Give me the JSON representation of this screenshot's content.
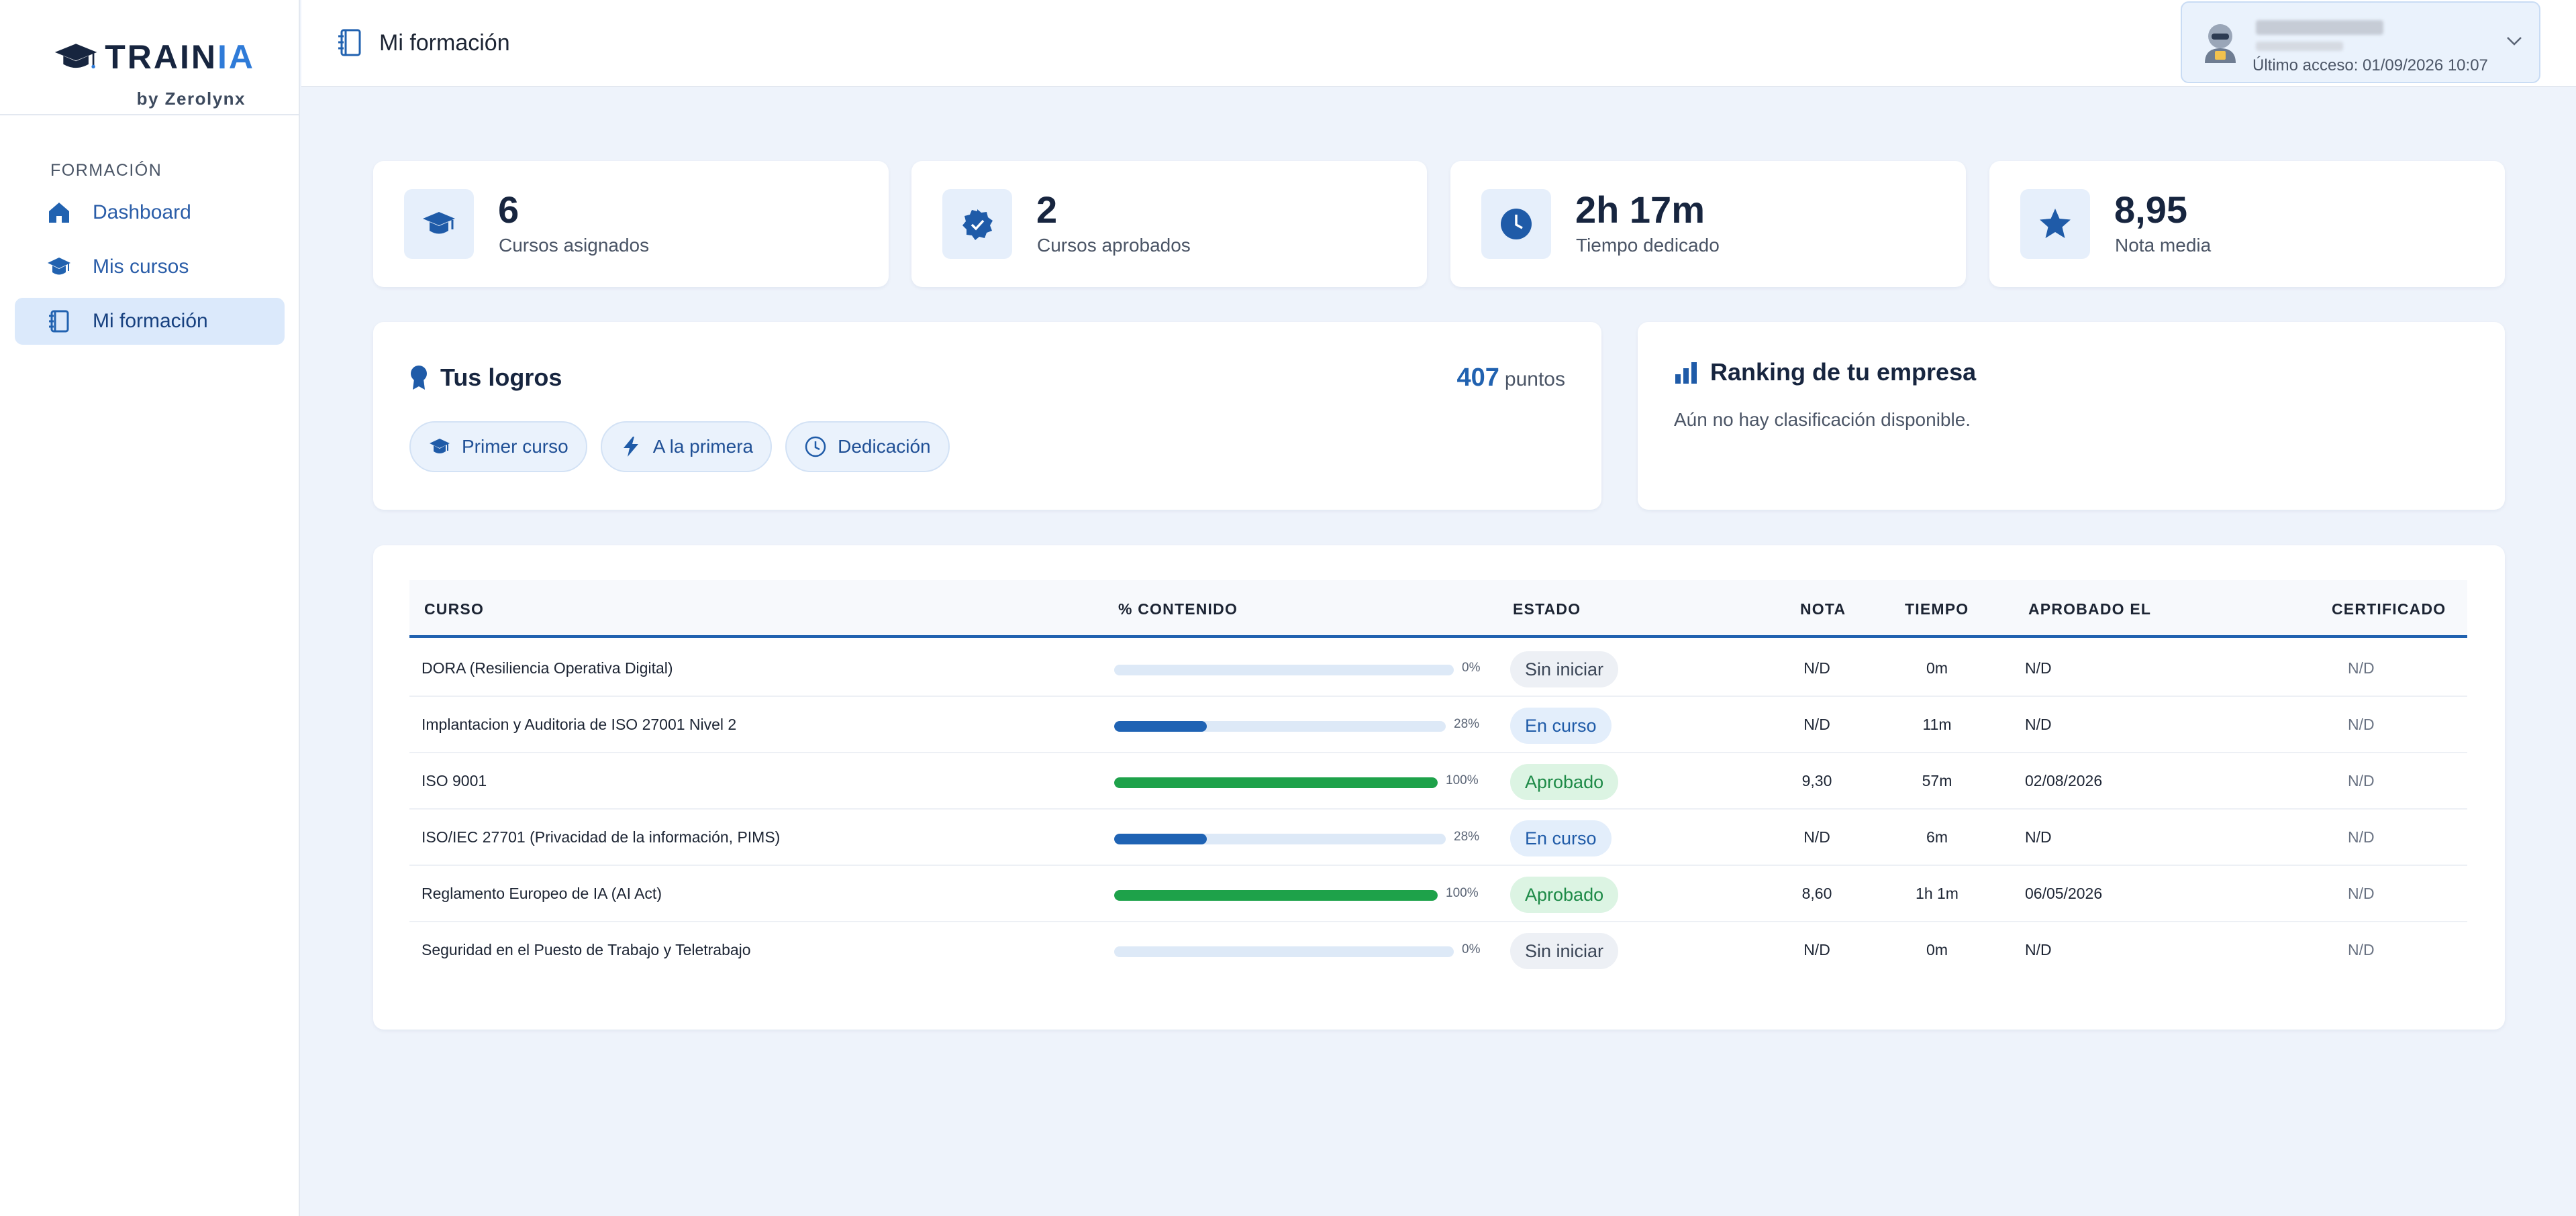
{
  "brand": {
    "name_main": "TRAIN",
    "name_accent": "IA",
    "by": "by Zerolynx"
  },
  "sidebar": {
    "section_title": "FORMACIÓN",
    "items": [
      {
        "label": "Dashboard",
        "icon": "home-icon",
        "active": false
      },
      {
        "label": "Mis cursos",
        "icon": "graduation-cap-icon",
        "active": false
      },
      {
        "label": "Mi formación",
        "icon": "book-icon",
        "active": true
      }
    ]
  },
  "header": {
    "title": "Mi formación",
    "user": {
      "last_access": "Último acceso: 01/09/2026 10:07"
    }
  },
  "stats": [
    {
      "value": "6",
      "label": "Cursos asignados",
      "icon": "graduation-cap-icon"
    },
    {
      "value": "2",
      "label": "Cursos aprobados",
      "icon": "verified-badge-icon"
    },
    {
      "value": "2h 17m",
      "label": "Tiempo dedicado",
      "icon": "clock-icon"
    },
    {
      "value": "8,95",
      "label": "Nota media",
      "icon": "star-icon"
    }
  ],
  "achievements": {
    "title": "Tus logros",
    "points_value": "407",
    "points_label": "puntos",
    "badges": [
      {
        "label": "Primer curso",
        "icon": "graduation-cap-icon"
      },
      {
        "label": "A la primera",
        "icon": "lightning-icon"
      },
      {
        "label": "Dedicación",
        "icon": "clock-icon"
      }
    ]
  },
  "ranking": {
    "title": "Ranking de tu empresa",
    "empty_text": "Aún no hay clasificación disponible."
  },
  "table": {
    "headers": {
      "course": "CURSO",
      "content": "% CONTENIDO",
      "status": "ESTADO",
      "grade": "NOTA",
      "time": "TIEMPO",
      "approved": "APROBADO EL",
      "certificate": "CERTIFICADO"
    },
    "rows": [
      {
        "course": "DORA (Resiliencia Operativa Digital)",
        "progress": 0,
        "pct_label": "0%",
        "status": "Sin iniciar",
        "status_type": "none",
        "grade": "N/D",
        "time": "0m",
        "approved": "N/D",
        "certificate": "N/D"
      },
      {
        "course": "Implantacion y Auditoria de ISO 27001 Nivel 2",
        "progress": 28,
        "pct_label": "28%",
        "status": "En curso",
        "status_type": "progress",
        "grade": "N/D",
        "time": "11m",
        "approved": "N/D",
        "certificate": "N/D"
      },
      {
        "course": "ISO 9001",
        "progress": 100,
        "pct_label": "100%",
        "status": "Aprobado",
        "status_type": "approved",
        "grade": "9,30",
        "time": "57m",
        "approved": "02/08/2026",
        "certificate": "N/D"
      },
      {
        "course": "ISO/IEC 27701 (Privacidad de la información, PIMS)",
        "progress": 28,
        "pct_label": "28%",
        "status": "En curso",
        "status_type": "progress",
        "grade": "N/D",
        "time": "6m",
        "approved": "N/D",
        "certificate": "N/D"
      },
      {
        "course": "Reglamento Europeo de IA (AI Act)",
        "progress": 100,
        "pct_label": "100%",
        "status": "Aprobado",
        "status_type": "approved",
        "grade": "8,60",
        "time": "1h 1m",
        "approved": "06/05/2026",
        "certificate": "N/D"
      },
      {
        "course": "Seguridad en el Puesto de Trabajo y Teletrabajo",
        "progress": 0,
        "pct_label": "0%",
        "status": "Sin iniciar",
        "status_type": "none",
        "grade": "N/D",
        "time": "0m",
        "approved": "N/D",
        "certificate": "N/D"
      }
    ]
  },
  "colors": {
    "accent": "#2162b0",
    "progress_in_course": "#1f63b4",
    "progress_complete": "#1ea24a",
    "background": "#eef3fb"
  }
}
